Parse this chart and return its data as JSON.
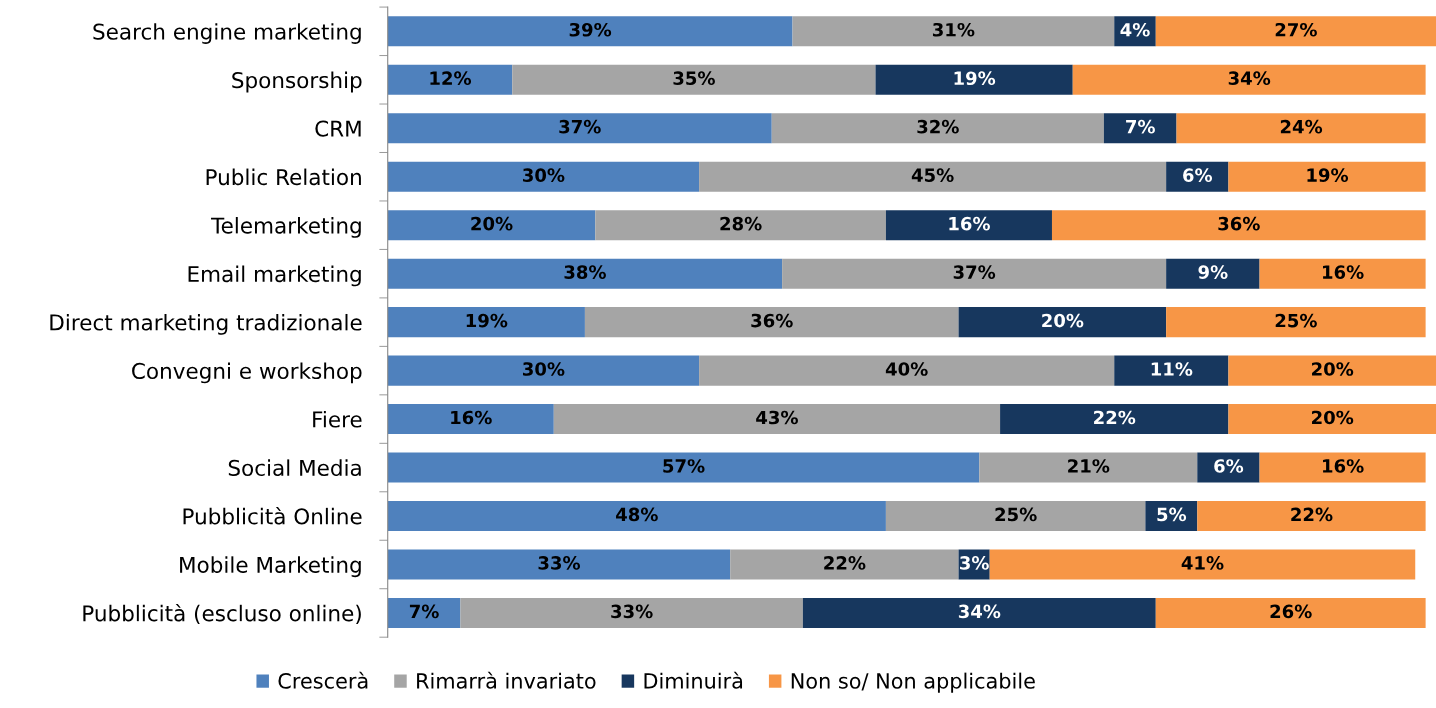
{
  "chart_data": {
    "type": "bar",
    "orientation": "horizontal",
    "stacked": true,
    "legend": "bottom",
    "grid": false,
    "categories": [
      "Search engine marketing",
      "Sponsorship",
      "CRM",
      "Public Relation",
      "Telemarketing",
      "Email marketing",
      "Direct marketing tradizionale",
      "Convegni e workshop",
      "Fiere",
      "Social Media",
      "Pubblicità Online",
      "Mobile Marketing",
      "Pubblicità (escluso online)"
    ],
    "series": [
      {
        "name": "Crescerà",
        "color": "#4f81bd",
        "values": [
          39,
          12,
          37,
          30,
          20,
          38,
          19,
          30,
          16,
          57,
          48,
          33,
          7
        ],
        "value_labels": [
          "39%",
          "12%",
          "37%",
          "30%",
          "20%",
          "38%",
          "19%",
          "30%",
          "16%",
          "57%",
          "48%",
          "33%",
          "7%"
        ]
      },
      {
        "name": "Rimarrà invariato",
        "color": "#a5a5a5",
        "values": [
          31,
          35,
          32,
          45,
          28,
          37,
          36,
          40,
          43,
          21,
          25,
          22,
          33
        ],
        "value_labels": [
          "31%",
          "35%",
          "32%",
          "45%",
          "28%",
          "37%",
          "36%",
          "40%",
          "43%",
          "21%",
          "25%",
          "22%",
          "33%"
        ]
      },
      {
        "name": "Diminuirà",
        "color": "#17375e",
        "values": [
          4,
          19,
          7,
          6,
          16,
          9,
          20,
          11,
          22,
          6,
          5,
          3,
          34
        ],
        "value_labels": [
          "4%",
          "19%",
          "7%",
          "6%",
          "16%",
          "9%",
          "20%",
          "11%",
          "22%",
          "6%",
          "5%",
          "3%",
          "34%"
        ]
      },
      {
        "name": "Non so/ Non applicabile",
        "color": "#f79646",
        "values": [
          27,
          34,
          24,
          19,
          36,
          16,
          25,
          20,
          20,
          16,
          22,
          41,
          26
        ],
        "value_labels": [
          "27%",
          "34%",
          "24%",
          "19%",
          "36%",
          "16%",
          "25%",
          "20%",
          "20%",
          "16%",
          "22%",
          "41%",
          "26%"
        ]
      }
    ]
  }
}
